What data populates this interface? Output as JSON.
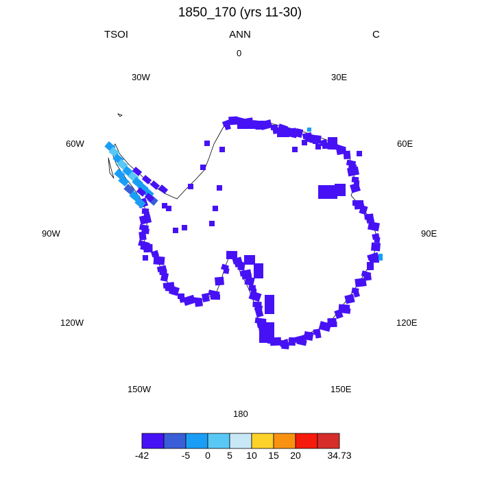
{
  "title": "1850_170 (yrs 11-30)",
  "header": {
    "variable": "TSOI",
    "season": "ANN",
    "units": "C"
  },
  "longitude_labels": [
    "0",
    "30E",
    "60E",
    "90E",
    "120E",
    "150E",
    "180",
    "150W",
    "120W",
    "90W",
    "60W",
    "30W"
  ],
  "colorbar": {
    "colors": [
      "#4612f5",
      "#3a5ed8",
      "#1a9ef5",
      "#5ac8f5",
      "#c8e8f8",
      "#fdd22a",
      "#f99211",
      "#f61a0c",
      "#d62d2a"
    ],
    "tick_labels": [
      "-42",
      "-5",
      "0",
      "5",
      "10",
      "15",
      "20",
      "34.73"
    ]
  },
  "map": {
    "region": "Antarctica (south polar stereographic)",
    "dominant_color": "#4612f5",
    "peninsula_colors": [
      "#1a9ef5",
      "#5ac8f5",
      "#3a5ed8"
    ]
  }
}
